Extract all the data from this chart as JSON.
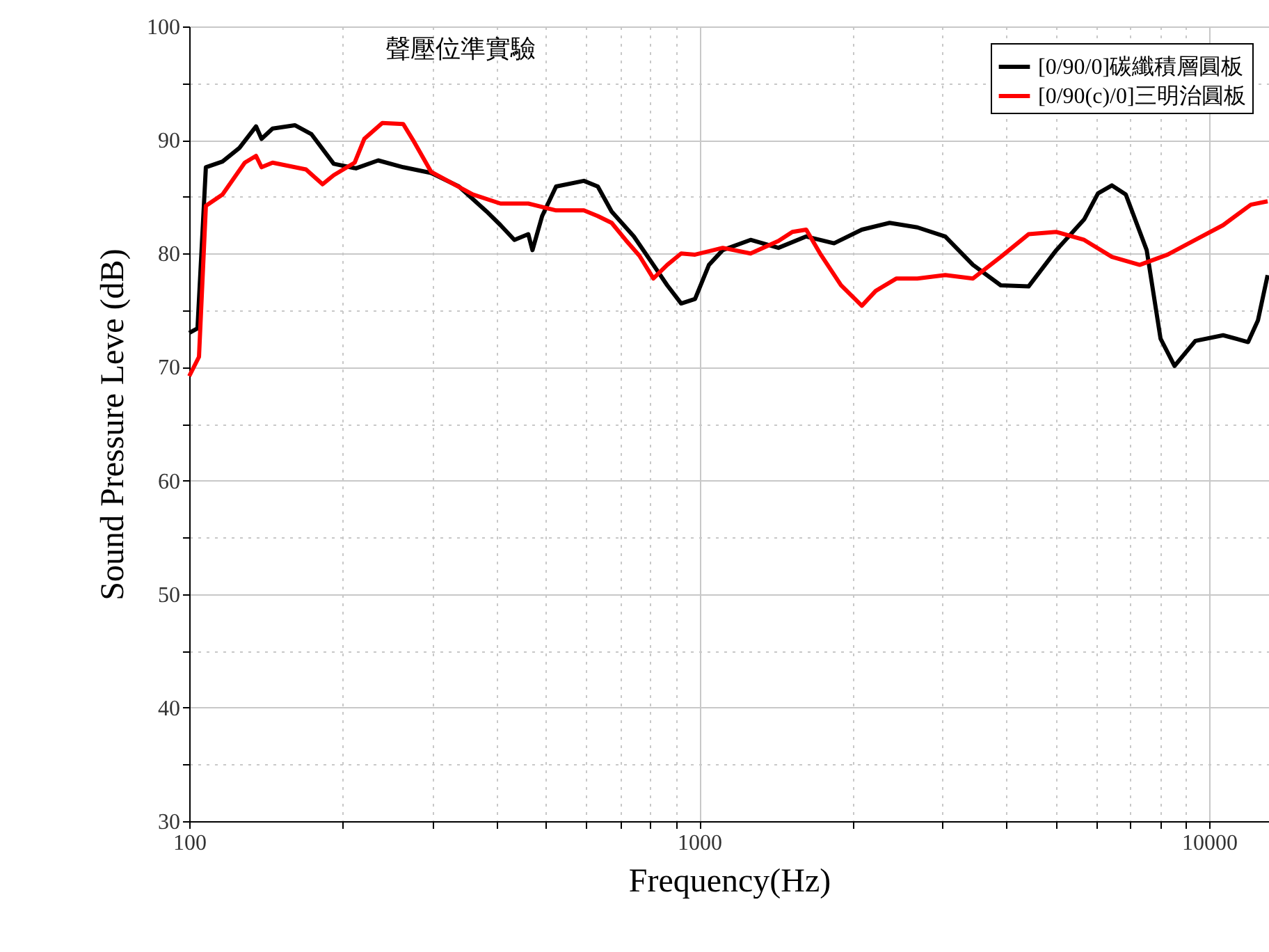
{
  "chart_data": {
    "type": "line",
    "title": "聲壓位準實驗",
    "xlabel": "Frequency(Hz)",
    "ylabel": "Sound Pressure Leve (dB)",
    "log": "x",
    "grid": true,
    "legend": "top right",
    "line_style": "solid",
    "marker": "none",
    "xlim": [
      100,
      13100
    ],
    "xticks": [
      100,
      {
        "value": 200,
        "label": null
      },
      {
        "value": 300,
        "label": null
      },
      {
        "value": 400,
        "label": null
      },
      {
        "value": 500,
        "label": null
      },
      {
        "value": 600,
        "label": null
      },
      {
        "value": 700,
        "label": null
      },
      {
        "value": 800,
        "label": null
      },
      {
        "value": 900,
        "label": null
      },
      1000,
      {
        "value": 2000,
        "label": null
      },
      {
        "value": 3000,
        "label": null
      },
      {
        "value": 4000,
        "label": null
      },
      {
        "value": 5000,
        "label": null
      },
      {
        "value": 6000,
        "label": null
      },
      {
        "value": 7000,
        "label": null
      },
      {
        "value": 8000,
        "label": null
      },
      {
        "value": 9000,
        "label": null
      },
      10000
    ],
    "ylim": [
      30,
      100
    ],
    "yticks": [
      30,
      {
        "value": 35,
        "label": null
      },
      40,
      {
        "value": 45,
        "label": null
      },
      50,
      {
        "value": 55,
        "label": null
      },
      60,
      {
        "value": 65,
        "label": null
      },
      70,
      {
        "value": 75,
        "label": null
      },
      80,
      {
        "value": 85,
        "label": null
      },
      90,
      {
        "value": 95,
        "label": null
      },
      100
    ],
    "series": [
      {
        "name": "[0/90/0]碳纖積層圓板",
        "color": "#000000",
        "x": [
          100,
          103.8,
          107.8,
          116.2,
          125.4,
          135.2,
          138.6,
          145.7,
          161.1,
          173.7,
          192.0,
          212.3,
          234.7,
          262.8,
          298.0,
          337.9,
          383.0,
          407.7,
          434.1,
          462.2,
          471.0,
          492.0,
          524.0,
          594.0,
          632.6,
          673.4,
          744.5,
          813.0,
          865.6,
          921.7,
          981.3,
          1045,
          1112,
          1261,
          1430,
          1621,
          1838,
          2084,
          2362,
          2678,
          3037,
          3442,
          3902,
          4424,
          5015,
          5686,
          6053,
          6446,
          6862,
          7541,
          8028,
          8552,
          9394,
          10650,
          11920,
          12460,
          13020
        ],
        "values": [
          73,
          73.4,
          87.6,
          88.1,
          89.3,
          91.2,
          90.1,
          91,
          91.3,
          90.5,
          87.9,
          87.5,
          88.2,
          87.6,
          87.1,
          85.9,
          83.7,
          82.5,
          81.2,
          81.7,
          80.3,
          83.3,
          85.9,
          86.4,
          85.9,
          83.7,
          81.5,
          79,
          77.2,
          75.6,
          76,
          79,
          80.3,
          81.2,
          80.5,
          81.5,
          80.9,
          82.1,
          82.7,
          82.3,
          81.5,
          79,
          77.2,
          77.1,
          80.3,
          83,
          85.3,
          86,
          85.2,
          80.3,
          72.5,
          70.1,
          72.3,
          72.8,
          72.2,
          74.1,
          78.1
        ]
      },
      {
        "name": "[0/90(c)/0]三明治圓板",
        "color": "#ff0000",
        "x": [
          100,
          104.5,
          107.8,
          116.2,
          128.5,
          135.2,
          138.6,
          145.7,
          169.4,
          182.6,
          192.0,
          211.0,
          220.4,
          239.1,
          262.8,
          276.3,
          298.0,
          359.6,
          407.7,
          462.2,
          524.0,
          594.0,
          632.6,
          673.4,
          717.1,
          763.4,
          813.0,
          865.6,
          921.7,
          981.3,
          1112,
          1261,
          1430,
          1523,
          1621,
          1726,
          1897,
          2084,
          2218,
          2437,
          2678,
          3037,
          3442,
          3902,
          4424,
          5015,
          5686,
          6446,
          7308,
          8288,
          9394,
          10650,
          12070,
          13020
        ],
        "values": [
          69.2,
          70.9,
          84.2,
          85.2,
          88,
          88.6,
          87.6,
          88,
          87.4,
          86.1,
          86.9,
          88,
          90.1,
          91.5,
          91.4,
          89.8,
          87.2,
          85.2,
          84.4,
          84.4,
          83.8,
          83.8,
          83.3,
          82.7,
          81.2,
          79.8,
          77.8,
          79,
          80,
          79.9,
          80.5,
          80,
          81.1,
          81.9,
          82.1,
          80,
          77.2,
          75.4,
          76.7,
          77.8,
          77.8,
          78.1,
          77.8,
          79.7,
          81.7,
          81.9,
          81.2,
          79.7,
          79,
          79.9,
          81.2,
          82.5,
          84.3,
          84.6
        ]
      }
    ]
  }
}
